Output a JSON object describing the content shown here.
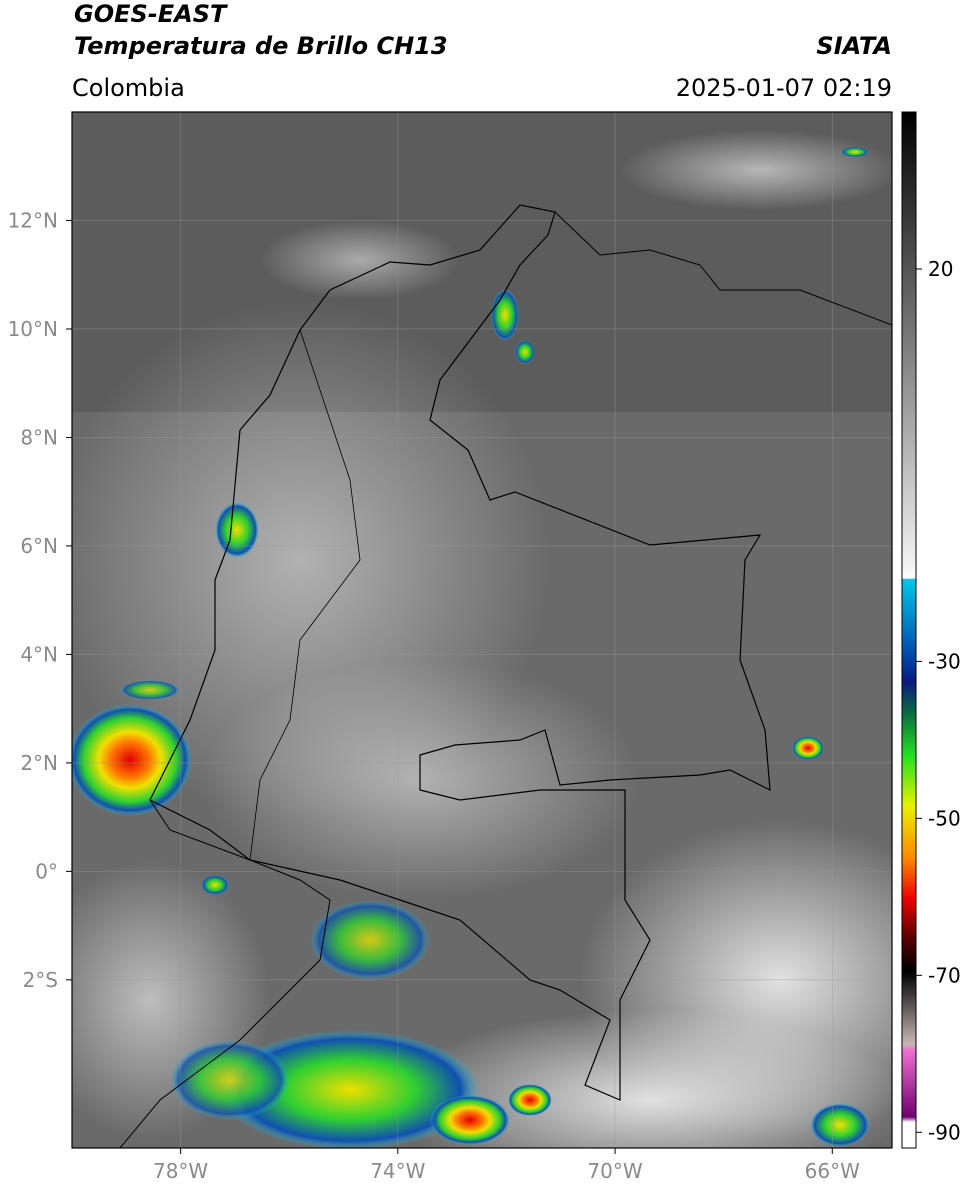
{
  "header": {
    "title": "GOES-EAST",
    "subtitle": "Temperatura de Brillo CH13",
    "source": "SIATA",
    "region": "Colombia",
    "timestamp": "2025-01-07 02:19"
  },
  "map": {
    "xlim": [
      -80,
      -64.9
    ],
    "ylim": [
      -5.1,
      14
    ],
    "xticks": [
      {
        "value": -78,
        "label": "78°W"
      },
      {
        "value": -74,
        "label": "74°W"
      },
      {
        "value": -70,
        "label": "70°W"
      },
      {
        "value": -66,
        "label": "66°W"
      }
    ],
    "yticks": [
      {
        "value": 12,
        "label": "12°N"
      },
      {
        "value": 10,
        "label": "10°N"
      },
      {
        "value": 8,
        "label": "8°N"
      },
      {
        "value": 6,
        "label": "6°N"
      },
      {
        "value": 4,
        "label": "4°N"
      },
      {
        "value": 2,
        "label": "2°N"
      },
      {
        "value": 0,
        "label": "0°"
      },
      {
        "value": -2,
        "label": "2°S"
      }
    ]
  },
  "colorbar": {
    "range": [
      -92,
      40
    ],
    "ticks": [
      20,
      -30,
      -50,
      -70,
      -90
    ]
  }
}
